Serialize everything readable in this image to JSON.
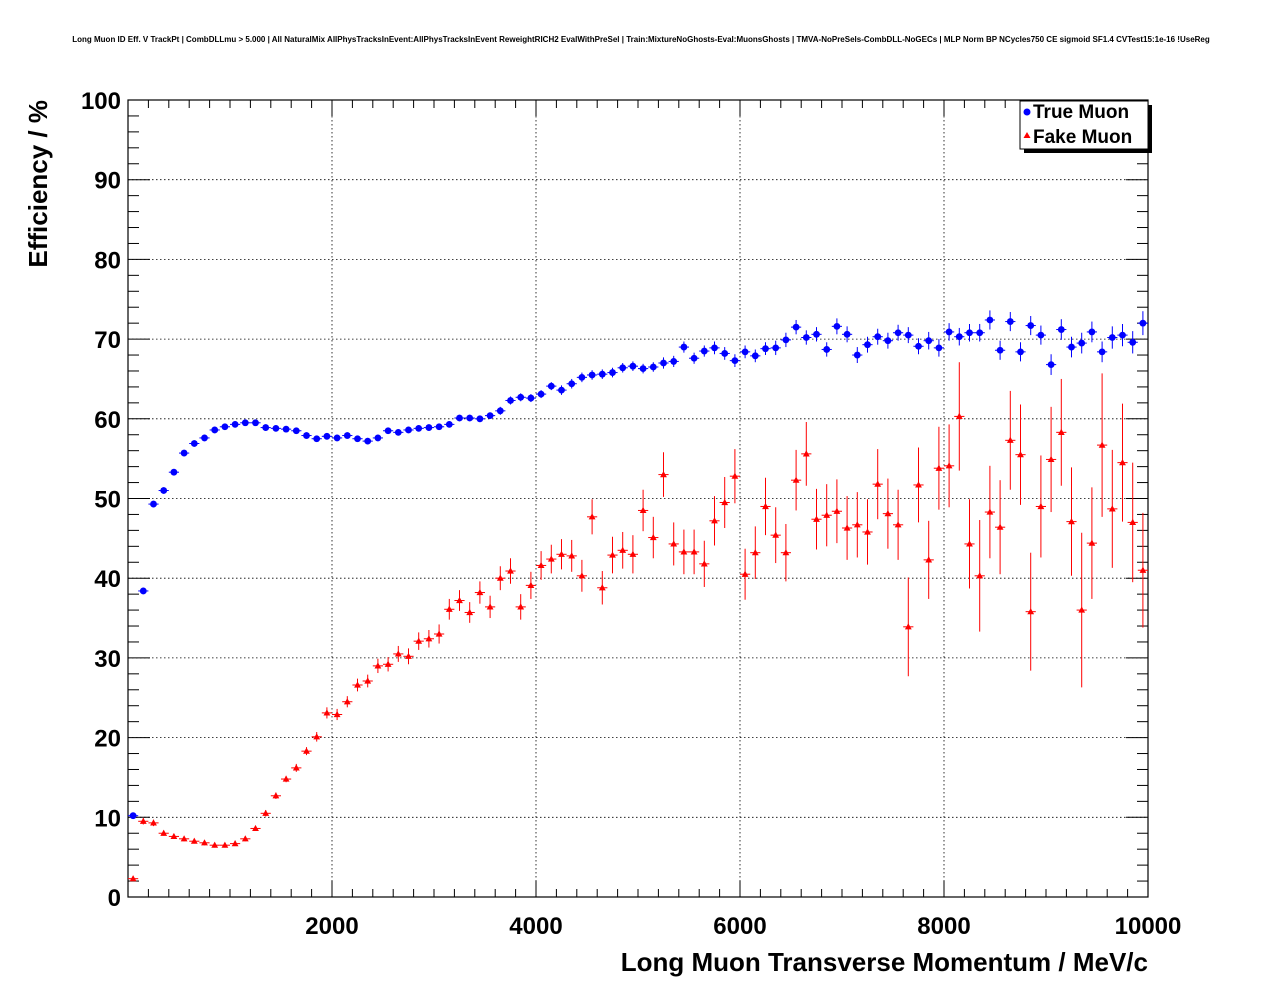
{
  "chart_data": {
    "type": "scatter",
    "title": "Long Muon ID Eff. V TrackPt | CombDLLmu > 5.000 | All NaturalMix AllPhysTracksInEvent:AllPhysTracksInEvent ReweightRICH2 EvalWithPreSel | Train:MixtureNoGhosts-Eval:MuonsGhosts | TMVA-NoPreSels-CombDLL-NoGECs | MLP Norm BP NCycles750 CE sigmoid SF1.4 CVTest15:1e-16 !UseReg",
    "xlabel": "Long Muon Transverse Momentum / MeV/c",
    "ylabel": "Efficiency / %",
    "xlim": [
      0,
      10000
    ],
    "ylim": [
      0,
      100
    ],
    "xticks": [
      2000,
      4000,
      6000,
      8000,
      10000
    ],
    "yticks": [
      0,
      10,
      20,
      30,
      40,
      50,
      60,
      70,
      80,
      90,
      100
    ],
    "grid": true,
    "legend_position": "top-right",
    "bin_width": 100,
    "x_start": 50,
    "series": [
      {
        "name": "True Muon",
        "color": "#0000ff",
        "marker": "circle",
        "values": [
          10.2,
          38.4,
          49.3,
          51.0,
          53.3,
          55.7,
          56.9,
          57.6,
          58.6,
          59.0,
          59.3,
          59.5,
          59.5,
          58.9,
          58.8,
          58.7,
          58.5,
          57.9,
          57.5,
          57.8,
          57.6,
          57.9,
          57.5,
          57.2,
          57.6,
          58.5,
          58.3,
          58.6,
          58.8,
          58.9,
          59.0,
          59.3,
          60.1,
          60.1,
          60.0,
          60.4,
          61.0,
          62.3,
          62.7,
          62.6,
          63.1,
          64.1,
          63.6,
          64.4,
          65.2,
          65.5,
          65.6,
          65.8,
          66.4,
          66.6,
          66.3,
          66.5,
          67.0,
          67.2,
          69.0,
          67.6,
          68.5,
          68.9,
          68.2,
          67.3,
          68.4,
          67.9,
          68.8,
          68.9,
          69.9,
          71.5,
          70.2,
          70.6,
          68.7,
          71.6,
          70.6,
          68.0,
          69.3,
          70.3,
          69.8,
          70.8,
          70.5,
          69.1,
          69.8,
          68.9,
          70.9,
          70.3,
          70.8,
          70.8,
          72.4,
          68.6,
          72.2,
          68.4,
          71.7,
          70.5,
          66.8,
          71.2,
          69.0,
          69.5,
          70.9,
          68.4,
          70.2,
          70.5,
          69.6,
          72.0
        ],
        "errors": [
          0.3,
          0.4,
          0.4,
          0.4,
          0.4,
          0.4,
          0.4,
          0.4,
          0.4,
          0.4,
          0.4,
          0.4,
          0.4,
          0.4,
          0.4,
          0.4,
          0.4,
          0.4,
          0.4,
          0.4,
          0.4,
          0.4,
          0.4,
          0.4,
          0.4,
          0.4,
          0.4,
          0.4,
          0.4,
          0.4,
          0.4,
          0.4,
          0.4,
          0.4,
          0.4,
          0.4,
          0.5,
          0.5,
          0.5,
          0.5,
          0.5,
          0.5,
          0.6,
          0.6,
          0.6,
          0.6,
          0.6,
          0.6,
          0.6,
          0.6,
          0.6,
          0.6,
          0.7,
          0.7,
          0.7,
          0.7,
          0.7,
          0.8,
          0.8,
          0.8,
          0.8,
          0.8,
          0.8,
          0.9,
          0.9,
          0.9,
          0.9,
          0.9,
          0.9,
          1.0,
          1.0,
          1.0,
          1.0,
          1.0,
          1.0,
          1.0,
          1.0,
          1.0,
          1.1,
          1.1,
          1.1,
          1.1,
          1.1,
          1.1,
          1.2,
          1.2,
          1.2,
          1.2,
          1.2,
          1.2,
          1.3,
          1.3,
          1.3,
          1.3,
          1.3,
          1.3,
          1.4,
          1.4,
          1.4,
          1.5
        ]
      },
      {
        "name": "Fake Muon",
        "color": "#ff0000",
        "marker": "triangle",
        "values": [
          2.3,
          9.5,
          9.3,
          8.0,
          7.6,
          7.3,
          7.0,
          6.8,
          6.5,
          6.5,
          6.7,
          7.3,
          8.6,
          10.5,
          12.7,
          14.8,
          16.2,
          18.3,
          20.1,
          23.1,
          22.9,
          24.5,
          26.6,
          27.1,
          29.0,
          29.2,
          30.5,
          30.2,
          32.1,
          32.4,
          33.0,
          36.1,
          37.2,
          35.7,
          38.2,
          36.4,
          40.0,
          40.9,
          36.4,
          39.1,
          41.6,
          42.4,
          43.0,
          42.8,
          40.3,
          47.7,
          38.8,
          42.9,
          43.5,
          43.0,
          48.5,
          45.1,
          53.0,
          44.3,
          43.3,
          43.3,
          41.8,
          47.2,
          49.5,
          52.8,
          40.5,
          43.2,
          49.0,
          45.4,
          43.2,
          52.3,
          55.6,
          47.4,
          47.9,
          48.4,
          46.3,
          46.7,
          45.8,
          51.8,
          48.1,
          46.7,
          33.9,
          51.7,
          42.3,
          53.8,
          54.1,
          60.3,
          44.3,
          40.3,
          48.3,
          46.4,
          57.3,
          55.5,
          35.8,
          49.0,
          54.9,
          58.3,
          47.1,
          36.0,
          44.4,
          56.7,
          48.7,
          54.5,
          47.0,
          41.0
        ],
        "errors": [
          0.3,
          0.4,
          0.4,
          0.3,
          0.3,
          0.3,
          0.3,
          0.3,
          0.3,
          0.3,
          0.3,
          0.3,
          0.3,
          0.4,
          0.4,
          0.4,
          0.5,
          0.5,
          0.6,
          0.7,
          0.7,
          0.7,
          0.8,
          0.8,
          0.9,
          0.9,
          1.0,
          1.0,
          1.1,
          1.1,
          1.2,
          1.3,
          1.3,
          1.3,
          1.4,
          1.4,
          1.5,
          1.6,
          1.6,
          1.7,
          1.8,
          1.8,
          1.9,
          2.0,
          2.0,
          2.2,
          2.1,
          2.3,
          2.3,
          2.4,
          2.6,
          2.6,
          2.8,
          2.7,
          2.8,
          2.8,
          2.9,
          3.1,
          3.2,
          3.4,
          3.2,
          3.3,
          3.6,
          3.5,
          3.6,
          3.8,
          4.0,
          3.8,
          3.9,
          4.0,
          4.0,
          4.1,
          4.1,
          4.4,
          4.4,
          4.4,
          6.2,
          4.7,
          4.9,
          5.2,
          5.2,
          6.8,
          5.6,
          7.0,
          5.8,
          5.9,
          6.2,
          6.3,
          7.4,
          6.4,
          6.6,
          6.7,
          6.8,
          9.7,
          7.0,
          9.0,
          7.4,
          7.4,
          7.5,
          7.2
        ]
      }
    ]
  }
}
